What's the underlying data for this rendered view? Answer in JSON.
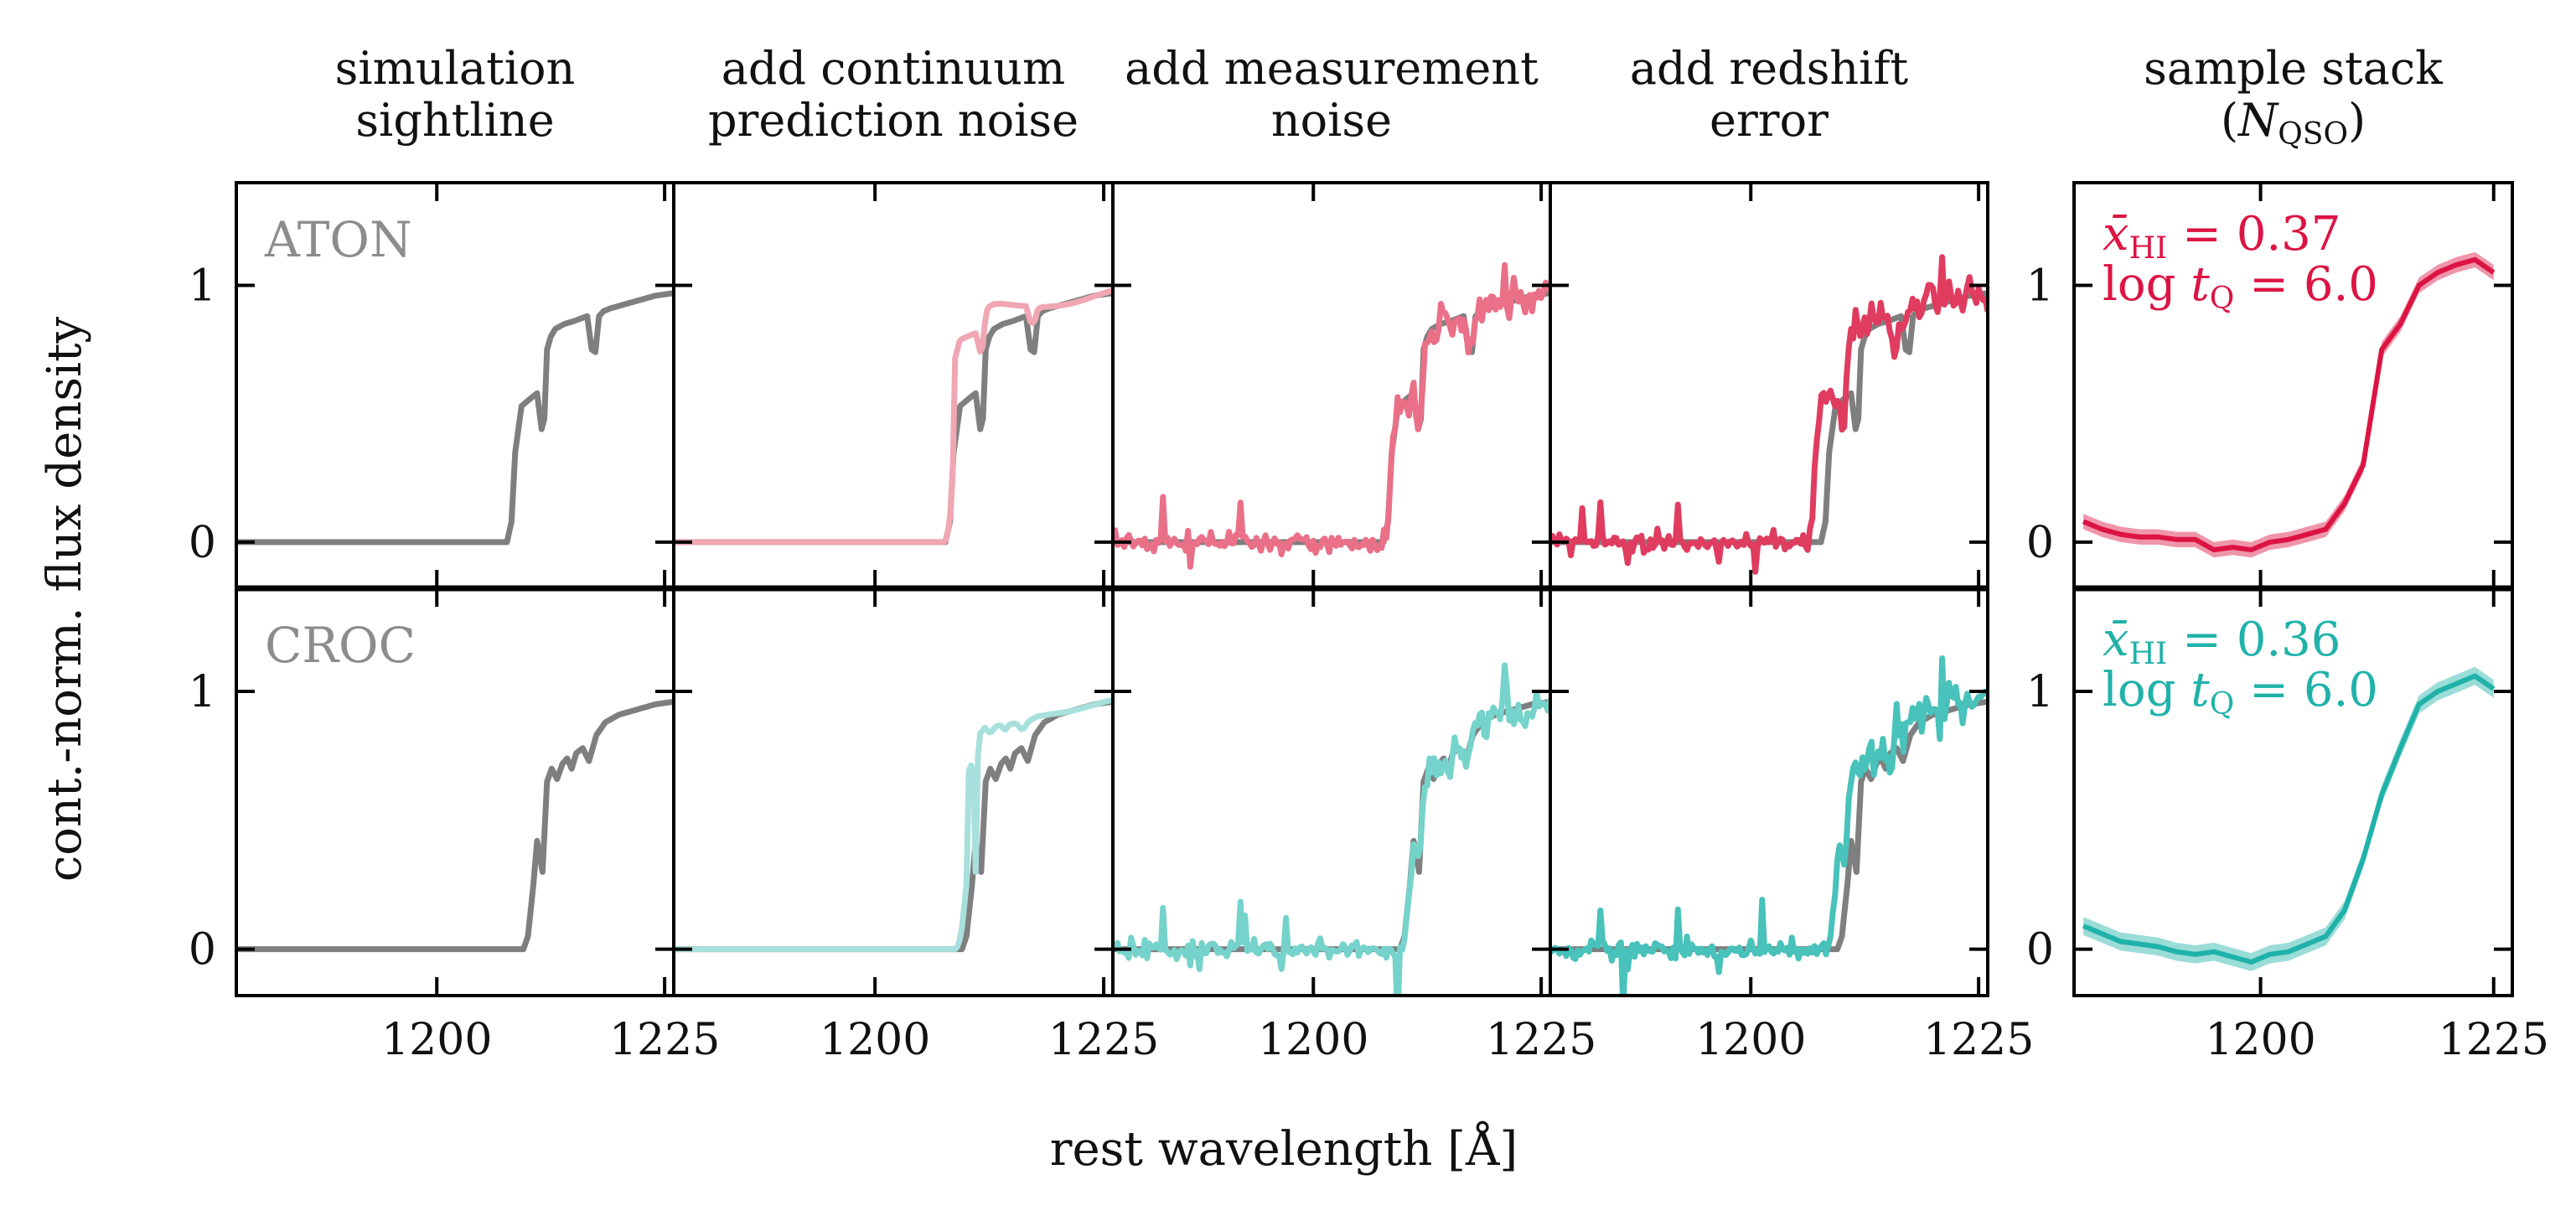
{
  "figure": {
    "ylabel": "cont.-norm. flux density",
    "xlabel": "rest wavelength [Å]"
  },
  "columns": [
    {
      "title": [
        "simulation",
        "sightline"
      ]
    },
    {
      "title": [
        "add continuum",
        "prediction noise"
      ]
    },
    {
      "title": [
        "add measurement",
        "noise"
      ]
    },
    {
      "title": [
        "add redshift",
        "error"
      ]
    },
    {
      "title": [
        "sample stack",
        "(N_QSO)"
      ]
    }
  ],
  "colors": {
    "reference_gray": "#7f7f7f",
    "label_gray": "#8c8c8c",
    "aton_light": "#f0a7b3",
    "aton_medium": "#ea7088",
    "aton_dark": "#e03c60",
    "aton_stack": "#dc1443",
    "croc_light": "#a7e0dc",
    "croc_medium": "#75d3cb",
    "croc_dark": "#48c2ba",
    "croc_stack": "#20b2a9"
  },
  "chart_data": [
    {
      "type": "line",
      "row": "ATON",
      "model_label": "ATON",
      "x_ticks": [
        1200,
        1225
      ],
      "y_ticks": [
        0,
        1
      ],
      "xlim_sightline": [
        1178,
        1226
      ],
      "xlim_stack": [
        1180,
        1227
      ],
      "ylim": [
        -0.18,
        1.4
      ],
      "sightline": {
        "x": [
          1178,
          1198,
          1201,
          1207.7,
          1208.2,
          1208.6,
          1209.3,
          1210.3,
          1211.0,
          1211.5,
          1211.8,
          1212.1,
          1212.5,
          1213.0,
          1213.5,
          1214.0,
          1215.0,
          1216.5,
          1217.0,
          1217.4,
          1217.8,
          1218.3,
          1219.0,
          1220.0,
          1222.0,
          1224.0,
          1226.0
        ],
        "y": [
          0,
          0,
          0,
          0.0,
          0.08,
          0.35,
          0.53,
          0.56,
          0.58,
          0.44,
          0.48,
          0.75,
          0.8,
          0.83,
          0.84,
          0.85,
          0.86,
          0.88,
          0.75,
          0.74,
          0.88,
          0.9,
          0.91,
          0.92,
          0.94,
          0.96,
          0.97
        ]
      },
      "panels": [
        {
          "column": 0,
          "series": [
            {
              "name": "",
              "style": "reference_only"
            }
          ]
        },
        {
          "column": 1,
          "series": [
            {
              "name": "",
              "kind": "continuum",
              "color_key": "aton_light",
              "x_shift": 0.0,
              "plateau": 0.975,
              "wiggle": 0.03
            }
          ]
        },
        {
          "column": 2,
          "series": [
            {
              "name": "",
              "kind": "measurement",
              "color_key": "aton_medium",
              "x_shift": 0.0
            }
          ]
        },
        {
          "column": 3,
          "series": [
            {
              "name": "",
              "kind": "measurement",
              "color_key": "aton_dark",
              "x_shift": -1.5
            }
          ]
        }
      ],
      "stack": {
        "color_key": "aton_stack",
        "annotation": [
          "x̄_HI = 0.37",
          "log t_Q = 6.0"
        ],
        "x": [
          1181,
          1183,
          1185,
          1187,
          1189,
          1191,
          1193,
          1195,
          1197,
          1199,
          1201,
          1203,
          1205,
          1207,
          1209,
          1211,
          1213,
          1215,
          1217,
          1219,
          1221,
          1223,
          1225
        ],
        "y": [
          0.08,
          0.05,
          0.03,
          0.02,
          0.02,
          0.01,
          0.01,
          -0.03,
          -0.02,
          -0.03,
          0.0,
          0.01,
          0.03,
          0.05,
          0.15,
          0.3,
          0.75,
          0.85,
          1.0,
          1.05,
          1.08,
          1.1,
          1.05
        ],
        "band": 0.03
      }
    },
    {
      "type": "line",
      "row": "CROC",
      "model_label": "CROC",
      "x_ticks": [
        1200,
        1225
      ],
      "y_ticks": [
        0,
        1
      ],
      "xlim_sightline": [
        1178,
        1226
      ],
      "xlim_stack": [
        1180,
        1227
      ],
      "ylim": [
        -0.18,
        1.4
      ],
      "sightline": {
        "x": [
          1178,
          1200,
          1209.5,
          1210.0,
          1210.6,
          1211.0,
          1211.6,
          1212.1,
          1212.6,
          1213.2,
          1213.8,
          1214.3,
          1214.8,
          1215.3,
          1216.0,
          1216.7,
          1217.5,
          1218.5,
          1220.0,
          1222.0,
          1224.0,
          1226.0
        ],
        "y": [
          0,
          0,
          0,
          0.05,
          0.25,
          0.42,
          0.3,
          0.65,
          0.7,
          0.66,
          0.72,
          0.74,
          0.7,
          0.76,
          0.78,
          0.73,
          0.83,
          0.88,
          0.91,
          0.93,
          0.95,
          0.96
        ]
      },
      "panels": [
        {
          "column": 0,
          "series": [
            {
              "name": "",
              "style": "reference_only"
            }
          ]
        },
        {
          "column": 1,
          "series": [
            {
              "name": "",
              "kind": "continuum",
              "color_key": "croc_light",
              "x_shift": -0.6,
              "plateau": 0.96,
              "wiggle": 0.025
            }
          ]
        },
        {
          "column": 2,
          "series": [
            {
              "name": "",
              "kind": "measurement",
              "color_key": "croc_medium",
              "x_shift": 0.0
            }
          ]
        },
        {
          "column": 3,
          "series": [
            {
              "name": "",
              "kind": "measurement",
              "color_key": "croc_dark",
              "x_shift": -1.3
            }
          ]
        }
      ],
      "stack": {
        "color_key": "croc_stack",
        "annotation": [
          "x̄_HI = 0.36",
          "log t_Q = 6.0"
        ],
        "x": [
          1181,
          1183,
          1185,
          1187,
          1189,
          1191,
          1193,
          1195,
          1197,
          1199,
          1201,
          1203,
          1205,
          1207,
          1209,
          1211,
          1213,
          1215,
          1217,
          1219,
          1221,
          1223,
          1225
        ],
        "y": [
          0.09,
          0.06,
          0.03,
          0.02,
          0.01,
          -0.01,
          -0.02,
          -0.01,
          -0.03,
          -0.05,
          -0.02,
          -0.01,
          0.02,
          0.05,
          0.15,
          0.35,
          0.6,
          0.78,
          0.95,
          1.0,
          1.03,
          1.06,
          1.01
        ],
        "band": 0.035
      }
    }
  ]
}
